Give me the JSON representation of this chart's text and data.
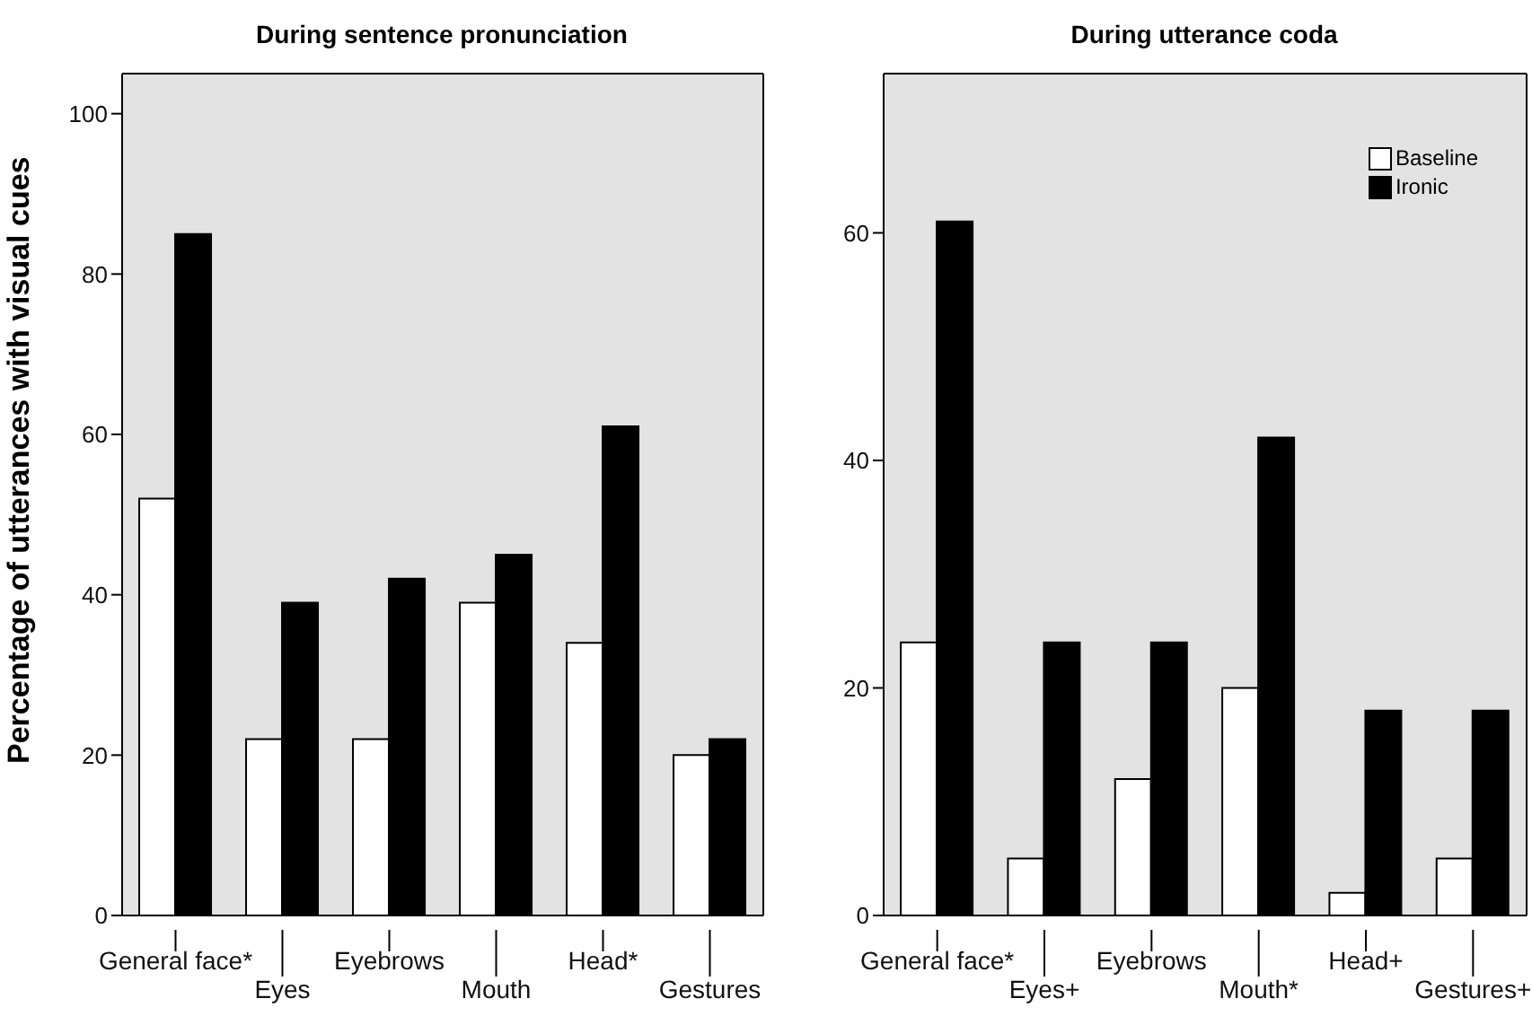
{
  "chart_data": [
    {
      "type": "bar",
      "title": "During sentence pronunciation",
      "ylabel": "Percentage of utterances with visual cues",
      "categories": [
        "General face*",
        "Eyes",
        "Eyebrows",
        "Mouth",
        "Head*",
        "Gestures"
      ],
      "series": [
        {
          "color": "#ffffff",
          "values": [
            52,
            22,
            22,
            39,
            34,
            20
          ]
        },
        {
          "color": "#000000",
          "values": [
            85,
            39,
            42,
            45,
            61,
            22
          ]
        }
      ],
      "ylim": [
        0,
        105
      ],
      "yticks": [
        0,
        20,
        40,
        60,
        80,
        100
      ],
      "legend": false
    },
    {
      "type": "bar",
      "title": "During utterance coda",
      "categories": [
        "General face*",
        "Eyes+",
        "Eyebrows",
        "Mouth*",
        "Head+",
        "Gestures+"
      ],
      "series": [
        {
          "name": "Baseline",
          "color": "#ffffff",
          "values": [
            24,
            5,
            12,
            20,
            2,
            5
          ]
        },
        {
          "name": "Ironic",
          "color": "#000000",
          "values": [
            61,
            24,
            24,
            42,
            18,
            18
          ]
        }
      ],
      "ylim": [
        0,
        74
      ],
      "yticks": [
        0,
        20,
        40,
        60
      ],
      "legend": "top right"
    }
  ]
}
